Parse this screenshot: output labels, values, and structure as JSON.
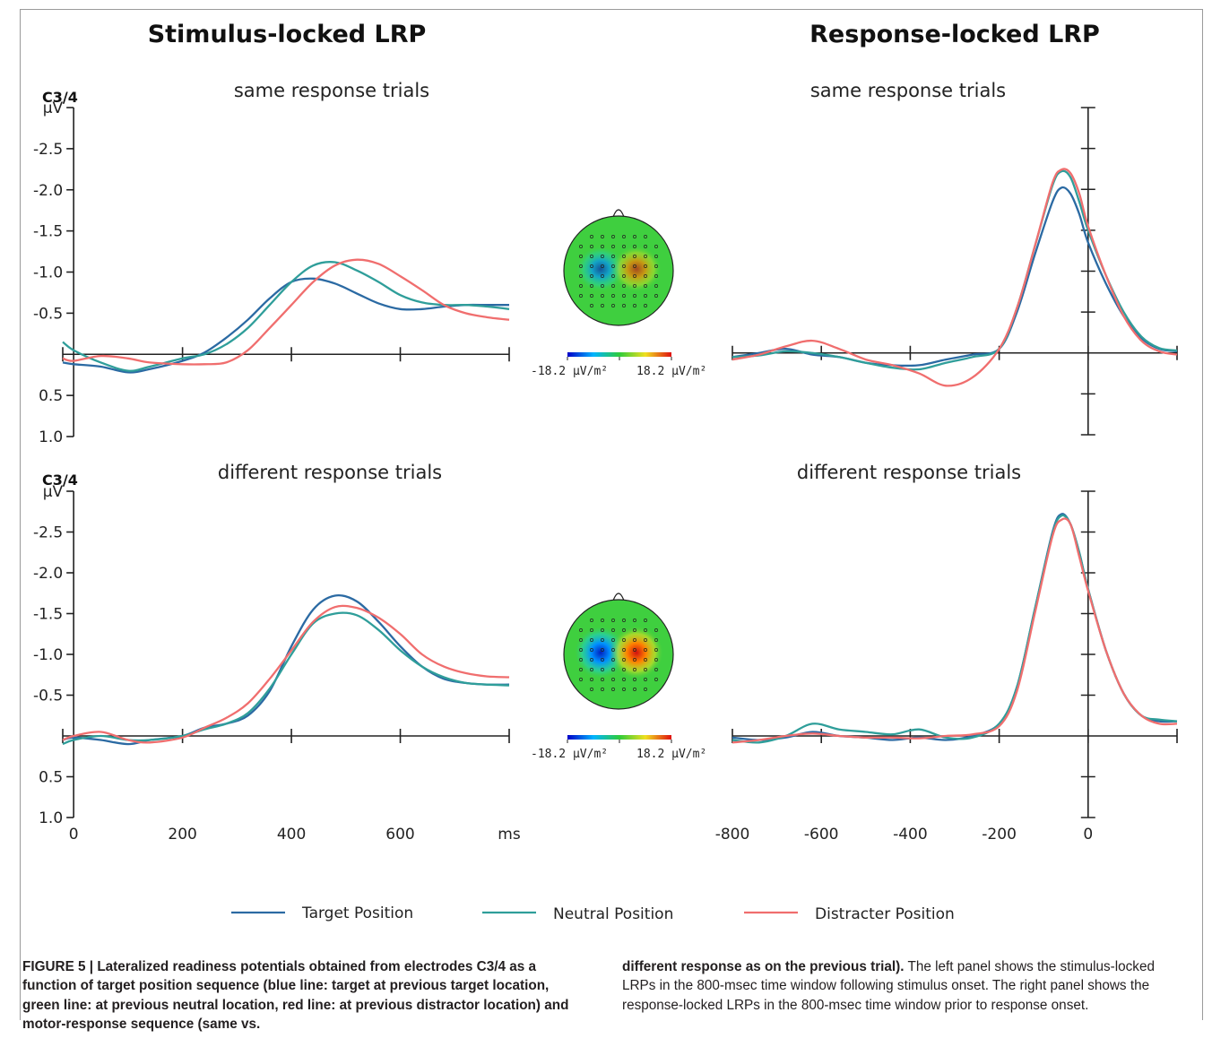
{
  "figure": {
    "col_titles": [
      "Stimulus-locked LRP",
      "Response-locked LRP"
    ],
    "row_titles": [
      "same response trials",
      "different response trials"
    ],
    "electrode_label": "C3/4",
    "colors": {
      "target": "#2b6aa3",
      "neutral": "#2f9e9a",
      "distracter": "#f06e6e"
    }
  },
  "legend": {
    "items": [
      {
        "label": "Target Position",
        "color": "#2b6aa3"
      },
      {
        "label": "Neutral Position",
        "color": "#2f9e9a"
      },
      {
        "label": "Distracter Position",
        "color": "#f06e6e"
      }
    ]
  },
  "topomap": {
    "min_label": "-18.2 μV/m²",
    "max_label": "18.2 μV/m²",
    "colormap": [
      "blue",
      "cyan",
      "green",
      "yellow",
      "red"
    ],
    "maps": [
      {
        "row": "same response trials",
        "peak_strength": 0.7
      },
      {
        "row": "different response trials",
        "peak_strength": 1.0
      }
    ]
  },
  "chart_data": [
    {
      "type": "line",
      "title": "same response trials",
      "panel": "Stimulus-locked LRP",
      "ylabel": "μV",
      "xlabel": "ms",
      "ylim": [
        1.0,
        -3.0
      ],
      "yticks": [
        1.0,
        0.5,
        -0.5,
        -1.0,
        -1.5,
        -2.0,
        -2.5
      ],
      "xlim": [
        -20,
        800
      ],
      "xticks": [
        0,
        200,
        400,
        600
      ],
      "series": [
        {
          "name": "Target Position",
          "x": [
            -20,
            0,
            50,
            100,
            140,
            200,
            240,
            280,
            320,
            360,
            400,
            440,
            480,
            520,
            560,
            600,
            640,
            680,
            720,
            760,
            800
          ],
          "y": [
            0.1,
            0.12,
            0.15,
            0.22,
            0.18,
            0.08,
            -0.02,
            -0.2,
            -0.42,
            -0.68,
            -0.88,
            -0.92,
            -0.86,
            -0.74,
            -0.62,
            -0.55,
            -0.55,
            -0.58,
            -0.6,
            -0.6,
            -0.6
          ]
        },
        {
          "name": "Neutral Position",
          "x": [
            -20,
            0,
            50,
            100,
            140,
            200,
            240,
            280,
            320,
            360,
            400,
            440,
            480,
            520,
            560,
            600,
            640,
            680,
            720,
            760,
            800
          ],
          "y": [
            -0.15,
            -0.05,
            0.1,
            0.2,
            0.15,
            0.05,
            0.0,
            -0.12,
            -0.32,
            -0.6,
            -0.88,
            -1.08,
            -1.12,
            -1.02,
            -0.88,
            -0.72,
            -0.63,
            -0.6,
            -0.6,
            -0.58,
            -0.55
          ]
        },
        {
          "name": "Distracter Position",
          "x": [
            -20,
            0,
            50,
            100,
            140,
            200,
            240,
            280,
            320,
            360,
            400,
            440,
            480,
            520,
            560,
            600,
            640,
            680,
            720,
            760,
            800
          ],
          "y": [
            0.05,
            0.08,
            0.02,
            0.05,
            0.1,
            0.12,
            0.12,
            0.1,
            -0.05,
            -0.32,
            -0.6,
            -0.88,
            -1.08,
            -1.15,
            -1.1,
            -0.95,
            -0.78,
            -0.6,
            -0.5,
            -0.45,
            -0.42
          ]
        }
      ]
    },
    {
      "type": "line",
      "title": "same response trials",
      "panel": "Response-locked LRP",
      "ylabel": "",
      "xlabel": "",
      "ylim": [
        1.0,
        -3.0
      ],
      "xlim": [
        -800,
        200
      ],
      "xticks": [
        -800,
        -600,
        -400,
        -200,
        0
      ],
      "series": [
        {
          "name": "Target Position",
          "x": [
            -800,
            -740,
            -680,
            -620,
            -560,
            -500,
            -440,
            -380,
            -320,
            -260,
            -200,
            -160,
            -120,
            -80,
            -60,
            -40,
            -20,
            0,
            40,
            80,
            120,
            160,
            200
          ],
          "y": [
            0.05,
            0.0,
            -0.05,
            0.02,
            0.05,
            0.12,
            0.15,
            0.15,
            0.08,
            0.02,
            -0.05,
            -0.5,
            -1.2,
            -1.85,
            -2.02,
            -1.95,
            -1.7,
            -1.35,
            -0.85,
            -0.45,
            -0.18,
            -0.05,
            -0.02
          ]
        },
        {
          "name": "Neutral Position",
          "x": [
            -800,
            -740,
            -680,
            -620,
            -560,
            -500,
            -440,
            -380,
            -320,
            -260,
            -200,
            -160,
            -120,
            -80,
            -60,
            -40,
            -20,
            0,
            40,
            80,
            120,
            160,
            200
          ],
          "y": [
            0.05,
            0.03,
            -0.02,
            0.0,
            0.05,
            0.12,
            0.18,
            0.2,
            0.12,
            0.05,
            -0.05,
            -0.55,
            -1.3,
            -2.05,
            -2.22,
            -2.15,
            -1.85,
            -1.5,
            -0.95,
            -0.5,
            -0.2,
            -0.06,
            -0.03
          ]
        },
        {
          "name": "Distracter Position",
          "x": [
            -800,
            -740,
            -680,
            -620,
            -560,
            -500,
            -440,
            -380,
            -320,
            -260,
            -200,
            -160,
            -120,
            -80,
            -60,
            -40,
            -20,
            0,
            40,
            80,
            120,
            160,
            200
          ],
          "y": [
            0.08,
            0.02,
            -0.08,
            -0.15,
            -0.05,
            0.08,
            0.15,
            0.25,
            0.4,
            0.3,
            -0.05,
            -0.55,
            -1.3,
            -2.08,
            -2.24,
            -2.2,
            -1.95,
            -1.55,
            -0.95,
            -0.45,
            -0.15,
            -0.02,
            0.02
          ]
        }
      ]
    },
    {
      "type": "line",
      "title": "different response trials",
      "panel": "Stimulus-locked LRP",
      "ylabel": "μV",
      "xlabel": "ms",
      "ylim": [
        1.0,
        -3.0
      ],
      "yticks": [
        1.0,
        0.5,
        -0.5,
        -1.0,
        -1.5,
        -2.0,
        -2.5
      ],
      "xlim": [
        -20,
        800
      ],
      "xticks": [
        0,
        200,
        400,
        600
      ],
      "series": [
        {
          "name": "Target Position",
          "x": [
            -20,
            0,
            50,
            100,
            140,
            200,
            240,
            280,
            320,
            360,
            400,
            440,
            480,
            520,
            560,
            600,
            640,
            680,
            720,
            760,
            800
          ],
          "y": [
            0.05,
            0.02,
            0.05,
            0.1,
            0.05,
            0.0,
            -0.1,
            -0.15,
            -0.25,
            -0.55,
            -1.1,
            -1.55,
            -1.72,
            -1.65,
            -1.4,
            -1.1,
            -0.85,
            -0.7,
            -0.65,
            -0.63,
            -0.63
          ]
        },
        {
          "name": "Neutral Position",
          "x": [
            -20,
            0,
            50,
            100,
            140,
            200,
            240,
            280,
            320,
            360,
            400,
            440,
            480,
            520,
            560,
            600,
            640,
            680,
            720,
            760,
            800
          ],
          "y": [
            0.1,
            0.05,
            0.0,
            0.05,
            0.05,
            0.0,
            -0.08,
            -0.15,
            -0.28,
            -0.58,
            -1.0,
            -1.38,
            -1.5,
            -1.48,
            -1.3,
            -1.05,
            -0.85,
            -0.72,
            -0.65,
            -0.63,
            -0.62
          ]
        },
        {
          "name": "Distracter Position",
          "x": [
            -20,
            0,
            50,
            100,
            140,
            200,
            240,
            280,
            320,
            360,
            400,
            440,
            480,
            520,
            560,
            600,
            640,
            680,
            720,
            760,
            800
          ],
          "y": [
            0.05,
            0.0,
            -0.05,
            0.05,
            0.08,
            0.02,
            -0.1,
            -0.22,
            -0.4,
            -0.7,
            -1.05,
            -1.4,
            -1.58,
            -1.57,
            -1.45,
            -1.25,
            -1.0,
            -0.85,
            -0.77,
            -0.73,
            -0.72
          ]
        }
      ]
    },
    {
      "type": "line",
      "title": "different response trials",
      "panel": "Response-locked LRP",
      "ylabel": "",
      "xlabel": "",
      "ylim": [
        1.0,
        -3.0
      ],
      "xlim": [
        -800,
        200
      ],
      "xticks": [
        -800,
        -600,
        -400,
        -200,
        0
      ],
      "series": [
        {
          "name": "Target Position",
          "x": [
            -800,
            -740,
            -680,
            -620,
            -560,
            -500,
            -440,
            -380,
            -320,
            -260,
            -200,
            -160,
            -120,
            -80,
            -60,
            -40,
            -20,
            0,
            40,
            80,
            120,
            160,
            200
          ],
          "y": [
            0.02,
            0.05,
            0.02,
            -0.05,
            0.0,
            0.02,
            0.05,
            0.02,
            0.05,
            0.0,
            -0.15,
            -0.6,
            -1.55,
            -2.5,
            -2.72,
            -2.6,
            -2.25,
            -1.8,
            -1.05,
            -0.52,
            -0.25,
            -0.18,
            -0.18
          ]
        },
        {
          "name": "Neutral Position",
          "x": [
            -800,
            -740,
            -680,
            -620,
            -560,
            -500,
            -440,
            -380,
            -320,
            -260,
            -200,
            -160,
            -120,
            -80,
            -60,
            -40,
            -20,
            0,
            40,
            80,
            120,
            160,
            200
          ],
          "y": [
            0.05,
            0.08,
            0.0,
            -0.15,
            -0.08,
            -0.05,
            -0.02,
            -0.08,
            0.02,
            0.02,
            -0.15,
            -0.6,
            -1.55,
            -2.48,
            -2.7,
            -2.6,
            -2.25,
            -1.8,
            -1.05,
            -0.52,
            -0.25,
            -0.2,
            -0.18
          ]
        },
        {
          "name": "Distracter Position",
          "x": [
            -800,
            -740,
            -680,
            -620,
            -560,
            -500,
            -440,
            -380,
            -320,
            -260,
            -200,
            -160,
            -120,
            -80,
            -60,
            -40,
            -20,
            0,
            40,
            80,
            120,
            160,
            200
          ],
          "y": [
            0.08,
            0.05,
            0.0,
            -0.03,
            0.0,
            0.02,
            0.02,
            0.03,
            0.0,
            -0.02,
            -0.12,
            -0.55,
            -1.5,
            -2.45,
            -2.65,
            -2.6,
            -2.2,
            -1.78,
            -1.05,
            -0.52,
            -0.25,
            -0.15,
            -0.15
          ]
        }
      ]
    }
  ],
  "caption": {
    "left_bold": "FIGURE 5 | Lateralized readiness potentials obtained from electrodes C3/4 as a function of target position sequence (blue line: target at previous target location, green line: at previous neutral location, red line: at previous distractor location) and motor-response sequence (same vs.",
    "right_bold": "different response as on the previous trial).",
    "right_text": " The left panel shows the stimulus-locked LRPs in the 800-msec time window following stimulus onset. The right panel shows the response-locked LRPs in the 800-msec time window prior to response onset."
  }
}
